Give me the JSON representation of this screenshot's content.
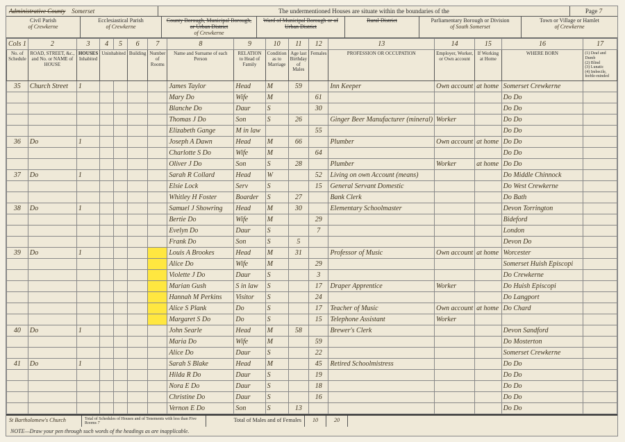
{
  "header": {
    "admin_county_label": "Administrative County",
    "admin_county_value": "Somerset",
    "mid_text": "The undermentioned Houses are situate within the boundaries of the",
    "page_label": "Page",
    "page_num": "7",
    "civil_parish_label": "Civil Parish",
    "civil_parish_value": "of Crewkerne",
    "eccl_parish_label": "Ecclesiastical Parish",
    "eccl_parish_value": "of Crewkerne",
    "urban_label": "County Borough, Municipal Borough, or Urban District",
    "urban_value": "of Crewkerne",
    "ward_label": "Ward of Municipal Borough or of Urban District",
    "ward_value": "",
    "rural_label": "Rural District",
    "rural_value": "",
    "parl_label": "Parliamentary Borough or Division",
    "parl_value": "of South Somerset",
    "town_label": "Town or Village or Hamlet",
    "town_value": "of Crewkerne"
  },
  "columns": {
    "c1": "Cols 1",
    "c2": "2",
    "c3": "3",
    "c4": "4",
    "c5": "5",
    "c6": "6",
    "c7": "7",
    "c8": "8",
    "c9": "9",
    "c10": "10",
    "c11": "11",
    "c12": "12",
    "c13": "13",
    "c14": "14",
    "c15": "15",
    "c16": "16",
    "c17": "17",
    "h1": "No. of Schedule",
    "h2": "ROAD, STREET, &c., and No. or NAME of HOUSE",
    "h_houses": "HOUSES",
    "h3": "Inhabited",
    "h4a": "Uninhabited",
    "h5": "Building",
    "h7": "Number of Rooms",
    "h8": "Name and Surname of each Person",
    "h9": "RELATION to Head of Family",
    "h10": "Condition as to Marriage",
    "h_age": "Age last Birthday of",
    "h11": "Males",
    "h12": "Females",
    "h13": "PROFESSION OR OCCUPATION",
    "h14": "Employer, Worker, or Own account",
    "h15": "If Working at Home",
    "h16": "WHERE BORN",
    "h17": "(1) Deaf and Dumb\n(2) Blind\n(3) Lunatic\n(4) Imbecile, feeble-minded"
  },
  "rows": [
    {
      "sch": "35",
      "addr": "Church Street",
      "inh": "1",
      "name": "James Taylor",
      "rel": "Head",
      "cond": "M",
      "ageM": "59",
      "ageF": "",
      "occ": "Inn Keeper",
      "ew": "Own account",
      "home": "at home",
      "born": "Somerset Crewkerne"
    },
    {
      "sch": "",
      "addr": "",
      "inh": "",
      "name": "Mary   Do",
      "rel": "Wife",
      "cond": "M",
      "ageM": "",
      "ageF": "61",
      "occ": "",
      "ew": "",
      "home": "",
      "born": "Do      Do"
    },
    {
      "sch": "",
      "addr": "",
      "inh": "",
      "name": "Blanche Do",
      "rel": "Daur",
      "cond": "S",
      "ageM": "",
      "ageF": "30",
      "occ": "",
      "ew": "",
      "home": "",
      "born": "Do      Do"
    },
    {
      "sch": "",
      "addr": "",
      "inh": "",
      "name": "Thomas J Do",
      "rel": "Son",
      "cond": "S",
      "ageM": "26",
      "ageF": "",
      "occ": "Ginger Beer Manufacturer (mineral)",
      "ew": "Worker",
      "home": "",
      "born": "Do      Do"
    },
    {
      "sch": "",
      "addr": "",
      "inh": "",
      "name": "Elizabeth Gange",
      "rel": "M in law",
      "cond": "",
      "ageM": "",
      "ageF": "55",
      "occ": "",
      "ew": "",
      "home": "",
      "born": "Do      Do"
    },
    {
      "sch": "36",
      "addr": "Do",
      "inh": "1",
      "name": "Joseph A Dawn",
      "rel": "Head",
      "cond": "M",
      "ageM": "66",
      "ageF": "",
      "occ": "Plumber",
      "ew": "Own account",
      "home": "at home",
      "born": "Do      Do"
    },
    {
      "sch": "",
      "addr": "",
      "inh": "",
      "name": "Charlotte S Do",
      "rel": "Wife",
      "cond": "M",
      "ageM": "",
      "ageF": "64",
      "occ": "",
      "ew": "",
      "home": "",
      "born": "Do      Do"
    },
    {
      "sch": "",
      "addr": "",
      "inh": "",
      "name": "Oliver J   Do",
      "rel": "Son",
      "cond": "S",
      "ageM": "28",
      "ageF": "",
      "occ": "Plumber",
      "ew": "Worker",
      "home": "at home",
      "born": "Do      Do"
    },
    {
      "sch": "37",
      "addr": "Do",
      "inh": "1",
      "name": "Sarah R Collard",
      "rel": "Head",
      "cond": "W",
      "ageM": "",
      "ageF": "52",
      "occ": "Living on own Account (means)",
      "ew": "",
      "home": "",
      "born": "Do  Middle Chinnock"
    },
    {
      "sch": "",
      "addr": "",
      "inh": "",
      "name": "Elsie Lock",
      "rel": "Serv",
      "cond": "S",
      "ageM": "",
      "ageF": "15",
      "occ": "General Servant Domestic",
      "ew": "",
      "home": "",
      "born": "Do  West Crewkerne"
    },
    {
      "sch": "",
      "addr": "",
      "inh": "",
      "name": "Whitley H Foster",
      "rel": "Boarder",
      "cond": "S",
      "ageM": "27",
      "ageF": "",
      "occ": "Bank Clerk",
      "ew": "",
      "home": "",
      "born": "Do   Bath"
    },
    {
      "sch": "38",
      "addr": "Do",
      "inh": "1",
      "name": "Samuel J Showring",
      "rel": "Head",
      "cond": "M",
      "ageM": "30",
      "ageF": "",
      "occ": "Elementary Schoolmaster",
      "ew": "",
      "home": "",
      "born": "Devon Torrington"
    },
    {
      "sch": "",
      "addr": "",
      "inh": "",
      "name": "Bertie   Do",
      "rel": "Wife",
      "cond": "M",
      "ageM": "",
      "ageF": "29",
      "occ": "",
      "ew": "",
      "home": "",
      "born": "   Bideford"
    },
    {
      "sch": "",
      "addr": "",
      "inh": "",
      "name": "Evelyn   Do",
      "rel": "Daur",
      "cond": "S",
      "ageM": "",
      "ageF": "7",
      "occ": "",
      "ew": "",
      "home": "",
      "born": "London"
    },
    {
      "sch": "",
      "addr": "",
      "inh": "",
      "name": "Frank   Do",
      "rel": "Son",
      "cond": "S",
      "ageM": "5",
      "ageF": "",
      "occ": "",
      "ew": "",
      "home": "",
      "born": "Devon   Do"
    },
    {
      "sch": "39",
      "addr": "Do",
      "inh": "1",
      "name": "Louis A Brookes",
      "rel": "Head",
      "cond": "M",
      "ageM": "31",
      "ageF": "",
      "occ": "Professor of Music",
      "ew": "Own account",
      "home": "at home",
      "born": "Worcester",
      "hl": true
    },
    {
      "sch": "",
      "addr": "",
      "inh": "",
      "name": "Alice   Do",
      "rel": "Wife",
      "cond": "M",
      "ageM": "",
      "ageF": "29",
      "occ": "",
      "ew": "",
      "home": "",
      "born": "Somerset Huish Episcopi",
      "hl": true
    },
    {
      "sch": "",
      "addr": "",
      "inh": "",
      "name": "Violette J Do",
      "rel": "Daur",
      "cond": "S",
      "ageM": "",
      "ageF": "3",
      "occ": "",
      "ew": "",
      "home": "",
      "born": "Do   Crewkerne",
      "hl": true
    },
    {
      "sch": "",
      "addr": "",
      "inh": "",
      "name": "Marian Gush",
      "rel": "S in law",
      "cond": "S",
      "ageM": "",
      "ageF": "17",
      "occ": "Draper Apprentice",
      "ew": "Worker",
      "home": "",
      "born": "Do  Huish Episcopi",
      "hl": true
    },
    {
      "sch": "",
      "addr": "",
      "inh": "",
      "name": "Hannah M Perkins",
      "rel": "Visitor",
      "cond": "S",
      "ageM": "",
      "ageF": "24",
      "occ": "",
      "ew": "",
      "home": "",
      "born": "Do   Langport",
      "hl": true
    },
    {
      "sch": "",
      "addr": "",
      "inh": "",
      "name": "Alice S Plank",
      "rel": "Do",
      "cond": "S",
      "ageM": "",
      "ageF": "17",
      "occ": "Teacher of Music",
      "ew": "Own account",
      "home": "at home",
      "born": "Do   Chard",
      "hl": true
    },
    {
      "sch": "",
      "addr": "",
      "inh": "",
      "name": "Margaret S Do",
      "rel": "Do",
      "cond": "S",
      "ageM": "",
      "ageF": "15",
      "occ": "Telephone Assistant",
      "ew": "Worker",
      "home": "",
      "born": "",
      "hl": true
    },
    {
      "sch": "40",
      "addr": "Do",
      "inh": "1",
      "name": "John Searle",
      "rel": "Head",
      "cond": "M",
      "ageM": "58",
      "ageF": "",
      "occ": "Brewer's Clerk",
      "ew": "",
      "home": "",
      "born": "Devon Sandford"
    },
    {
      "sch": "",
      "addr": "",
      "inh": "",
      "name": "Maria   Do",
      "rel": "Wife",
      "cond": "M",
      "ageM": "",
      "ageF": "59",
      "occ": "",
      "ew": "",
      "home": "",
      "born": "Do   Mosterton"
    },
    {
      "sch": "",
      "addr": "",
      "inh": "",
      "name": "Alice   Do",
      "rel": "Daur",
      "cond": "S",
      "ageM": "",
      "ageF": "22",
      "occ": "",
      "ew": "",
      "home": "",
      "born": "Somerset Crewkerne"
    },
    {
      "sch": "41",
      "addr": "Do",
      "inh": "1",
      "name": "Sarah S Blake",
      "rel": "Head",
      "cond": "M",
      "ageM": "",
      "ageF": "45",
      "occ": "Retired Schoolmistress",
      "ew": "",
      "home": "",
      "born": "Do      Do"
    },
    {
      "sch": "",
      "addr": "",
      "inh": "",
      "name": "Hilda R  Do",
      "rel": "Daur",
      "cond": "S",
      "ageM": "",
      "ageF": "19",
      "occ": "",
      "ew": "",
      "home": "",
      "born": "Do      Do"
    },
    {
      "sch": "",
      "addr": "",
      "inh": "",
      "name": "Nora E   Do",
      "rel": "Daur",
      "cond": "S",
      "ageM": "",
      "ageF": "18",
      "occ": "",
      "ew": "",
      "home": "",
      "born": "Do      Do"
    },
    {
      "sch": "",
      "addr": "",
      "inh": "",
      "name": "Christine Do",
      "rel": "Daur",
      "cond": "S",
      "ageM": "",
      "ageF": "16",
      "occ": "",
      "ew": "",
      "home": "",
      "born": "Do      Do"
    },
    {
      "sch": "",
      "addr": "",
      "inh": "",
      "name": "Vernon E Do",
      "rel": "Son",
      "cond": "S",
      "ageM": "13",
      "ageF": "",
      "occ": "",
      "ew": "",
      "home": "",
      "born": "Do      Do"
    }
  ],
  "footer": {
    "left1": "St Bartholomew's Church",
    "left2_label": "Total of Schedules of Houses and of Tenements with less than Five Rooms",
    "left2_value": "7",
    "mid_label": "Total of Males and of Females",
    "males": "10",
    "females": "20",
    "note": "NOTE—Draw your pen through such words of the headings as are inapplicable."
  },
  "colwidths": {
    "c1": 22,
    "c2": 80,
    "c3": 14,
    "c4": 14,
    "c5": 14,
    "c6": 14,
    "c7": 18,
    "c8": 110,
    "c9": 50,
    "c10": 30,
    "c11": 22,
    "c12": 22,
    "c13": 140,
    "c14": 56,
    "c15": 40,
    "c16": 130,
    "c17": 70
  }
}
